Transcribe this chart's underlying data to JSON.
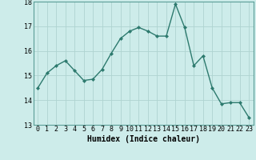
{
  "x": [
    0,
    1,
    2,
    3,
    4,
    5,
    6,
    7,
    8,
    9,
    10,
    11,
    12,
    13,
    14,
    15,
    16,
    17,
    18,
    19,
    20,
    21,
    22,
    23
  ],
  "y": [
    14.5,
    15.1,
    15.4,
    15.6,
    15.2,
    14.8,
    14.85,
    15.25,
    15.9,
    16.5,
    16.8,
    16.95,
    16.8,
    16.6,
    16.6,
    17.9,
    16.95,
    15.4,
    15.8,
    14.5,
    13.85,
    13.9,
    13.9,
    13.3
  ],
  "line_color": "#2d7a6e",
  "marker": "D",
  "marker_size": 2.0,
  "bg_color": "#cdecea",
  "grid_color": "#aed4d0",
  "xlabel": "Humidex (Indice chaleur)",
  "ylim": [
    13,
    18
  ],
  "yticks": [
    13,
    14,
    15,
    16,
    17,
    18
  ],
  "xlim": [
    -0.5,
    23.5
  ],
  "xtick_labels": [
    "0",
    "1",
    "2",
    "3",
    "4",
    "5",
    "6",
    "7",
    "8",
    "9",
    "10",
    "11",
    "12",
    "13",
    "14",
    "15",
    "16",
    "17",
    "18",
    "19",
    "20",
    "21",
    "22",
    "23"
  ],
  "xlabel_fontsize": 7,
  "tick_fontsize": 6,
  "line_width": 1.0,
  "spine_color": "#5a9e96"
}
